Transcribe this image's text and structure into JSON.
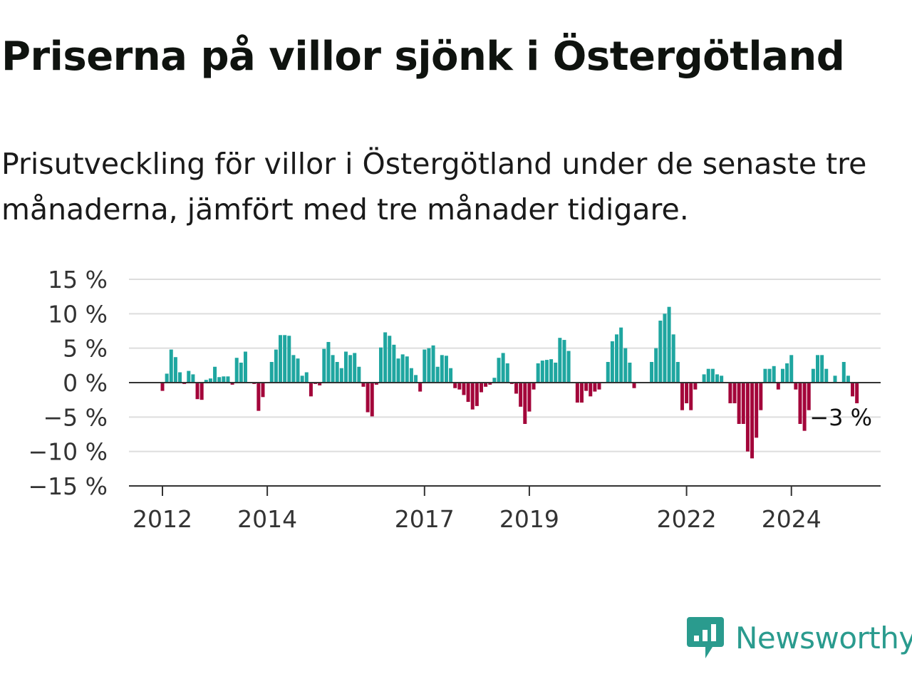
{
  "header": {
    "title": "Priserna på villor sjönk i Östergötland",
    "subtitle": "Prisutveckling för villor i Östergötland under de senaste tre månaderna, jämfört med tre månader tidigare."
  },
  "brand": {
    "name": "Newsworthy",
    "icon": "newsworthy-logo-icon",
    "color": "#2a9b8e"
  },
  "chart_data": {
    "type": "bar",
    "title": "Priserna på villor sjönk i Östergötland",
    "subtitle": "Prisutveckling för villor i Östergötland under de senaste tre månaderna, jämfört med tre månader tidigare.",
    "xlabel": "",
    "ylabel": "",
    "x_unit": "month",
    "x_start": "2012-01",
    "y_unit": "%",
    "ylim": [
      -15,
      15
    ],
    "y_ticks": [
      15,
      10,
      5,
      0,
      -5,
      -10,
      -15
    ],
    "y_tick_labels": [
      "15 %",
      "10 %",
      "5 %",
      "0 %",
      "−5 %",
      "−10 %",
      "−15 %"
    ],
    "x_ticks": [
      2012,
      2014,
      2017,
      2019,
      2022,
      2024
    ],
    "x_tick_labels": [
      "2012",
      "2014",
      "2017",
      "2019",
      "2022",
      "2024"
    ],
    "grid": true,
    "legend": "none",
    "colors": {
      "positive": "#1fa6a0",
      "negative": "#a3053a",
      "grid": "#dddddd",
      "axis": "#333333"
    },
    "end_label": "−3 %",
    "values": [
      -1.2,
      1.3,
      4.8,
      3.7,
      1.5,
      -0.2,
      1.7,
      1.2,
      -2.4,
      -2.5,
      0.4,
      0.6,
      2.3,
      0.8,
      0.9,
      0.9,
      -0.3,
      3.6,
      2.9,
      4.5,
      -0.1,
      -0.2,
      -4.1,
      -2.1,
      0.1,
      3.0,
      4.8,
      6.9,
      6.9,
      6.8,
      4.0,
      3.5,
      1.0,
      1.5,
      -2.0,
      -0.2,
      -0.4,
      4.9,
      5.9,
      4.0,
      3.0,
      2.1,
      4.5,
      4.0,
      4.3,
      2.3,
      -0.6,
      -4.3,
      -4.9,
      -0.3,
      5.1,
      7.3,
      6.8,
      5.5,
      3.5,
      4.1,
      3.8,
      2.1,
      1.1,
      -1.3,
      4.8,
      5.0,
      5.4,
      2.3,
      4.0,
      3.9,
      2.1,
      -0.8,
      -1.0,
      -1.8,
      -2.8,
      -3.9,
      -3.4,
      -1.4,
      -0.6,
      -0.3,
      0.7,
      3.6,
      4.3,
      2.8,
      -0.2,
      -1.6,
      -3.5,
      -6.0,
      -4.2,
      -1.0,
      2.8,
      3.2,
      3.3,
      3.4,
      2.9,
      6.5,
      6.2,
      4.6,
      -0.1,
      -2.9,
      -2.9,
      -1.2,
      -2.0,
      -1.3,
      -1.0,
      -0.1,
      3.0,
      6.0,
      7.0,
      8.0,
      5.0,
      2.9,
      -0.8,
      -0.1,
      0.0,
      0.0,
      3.0,
      5.0,
      9.0,
      10.0,
      11.0,
      7.0,
      3.0,
      -4.0,
      -3.0,
      -4.0,
      -1.0,
      0.0,
      1.2,
      2.0,
      2.0,
      1.2,
      1.0,
      0.0,
      -3.0,
      -3.0,
      -6.0,
      -6.0,
      -10.0,
      -11.0,
      -8.0,
      -4.0,
      2.0,
      2.0,
      2.4,
      -1.0,
      2.0,
      2.8,
      4.0,
      -1.0,
      -6.0,
      -7.0,
      -4.0,
      2.0,
      4.0,
      4.0,
      2.0,
      0.0,
      1.0,
      0.0,
      3.0,
      1.0,
      -2.0,
      -3.0
    ]
  }
}
